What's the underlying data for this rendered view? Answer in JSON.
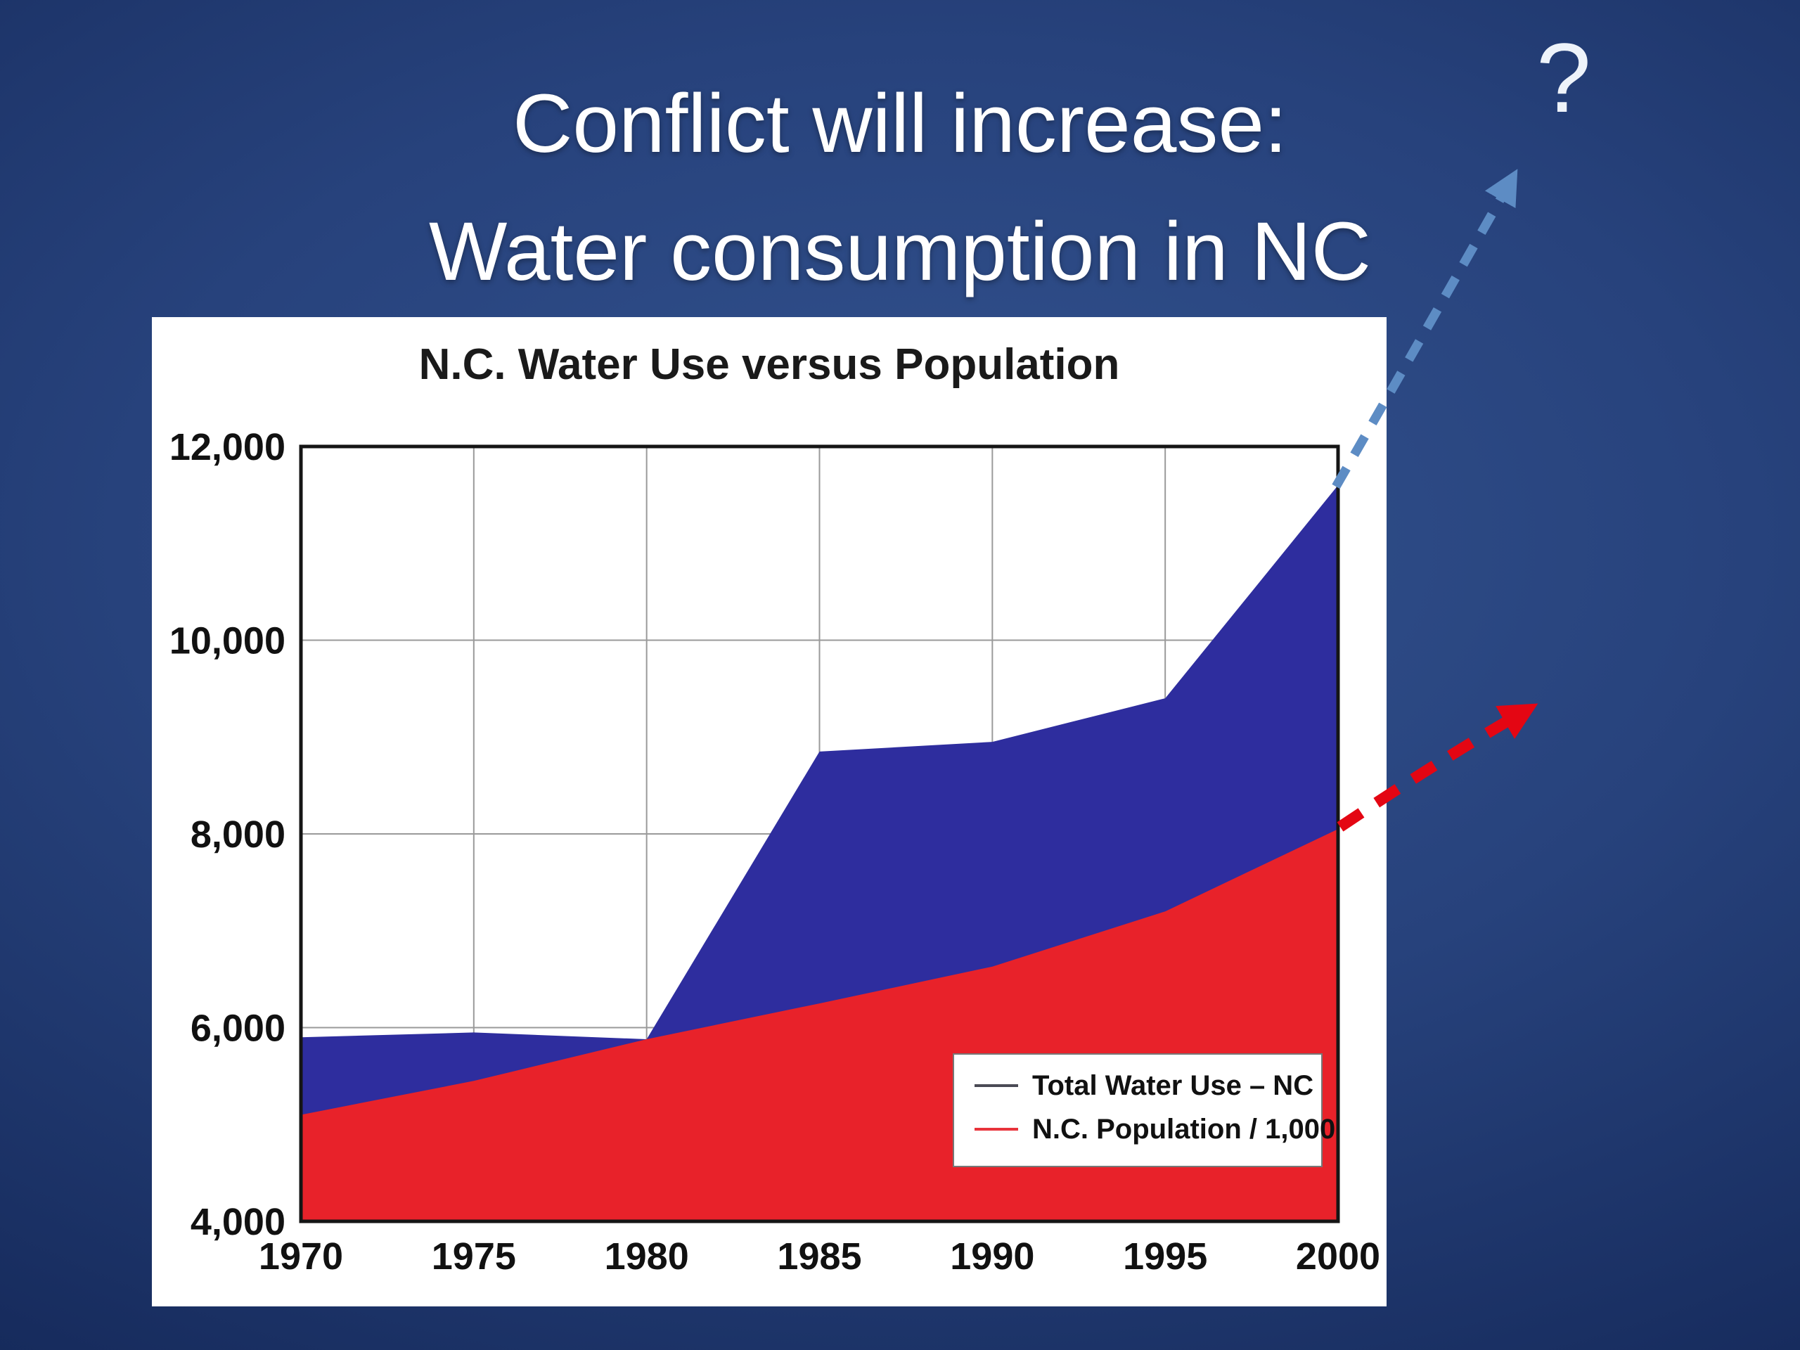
{
  "slide": {
    "title_line1": "Conflict will increase:",
    "title_line2": "Water consumption in NC",
    "question_mark": "?"
  },
  "colors": {
    "background_center": "#2f4f8f",
    "background_edge": "#0c1a40",
    "title_text": "#ffffff",
    "water_use_fill": "#2e2d9e",
    "population_fill": "#e8222a",
    "blue_arrow": "#5d8cc4",
    "red_arrow": "#e40613"
  },
  "chart_data": {
    "type": "area",
    "title": "N.C. Water Use versus Population",
    "x": [
      1970,
      1975,
      1980,
      1985,
      1990,
      1995,
      2000
    ],
    "xtick_labels": [
      "1970",
      "1975",
      "1980",
      "1985",
      "1990",
      "1995",
      "2000"
    ],
    "ylim": [
      4000,
      12000
    ],
    "yticks": [
      4000,
      6000,
      8000,
      10000,
      12000
    ],
    "ytick_labels": [
      "4,000",
      "6,000",
      "8,000",
      "10,000",
      "12,000"
    ],
    "grid": true,
    "legend_position": "bottom-right",
    "series": [
      {
        "id": "total-water-use",
        "name": "Total Water Use – NC",
        "color": "#2e2d9e",
        "legend_swatch": "#4a4a55",
        "values": [
          5900,
          5950,
          5880,
          8850,
          8950,
          9400,
          11600
        ]
      },
      {
        "id": "population",
        "name": "N.C. Population / 1,000",
        "color": "#e8222a",
        "legend_swatch": "#e8333b",
        "values": [
          5100,
          5450,
          5880,
          6250,
          6630,
          7200,
          8050
        ]
      }
    ]
  }
}
